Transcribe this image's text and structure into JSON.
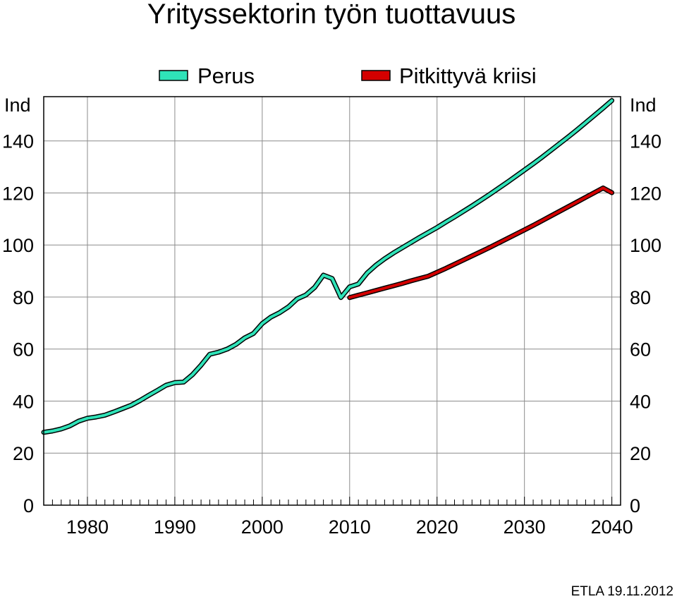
{
  "chart_data": {
    "type": "line",
    "title": "Yrityssektorin työn tuottavuus",
    "ylabel_left": "Ind",
    "ylabel_right": "Ind",
    "credit": "ETLA 19.11.2012",
    "xlim": [
      1975,
      2041
    ],
    "ylim": [
      0,
      157
    ],
    "x_ticks": [
      1980,
      1990,
      2000,
      2010,
      2020,
      2030,
      2040
    ],
    "y_ticks": [
      0,
      20,
      40,
      60,
      80,
      100,
      120,
      140
    ],
    "grid": true,
    "legend_position": "top",
    "series": [
      {
        "name": "Perus",
        "color": "#2fe3b8",
        "x": [
          1975,
          1976,
          1977,
          1978,
          1979,
          1980,
          1981,
          1982,
          1983,
          1984,
          1985,
          1986,
          1987,
          1988,
          1989,
          1990,
          1991,
          1992,
          1993,
          1994,
          1995,
          1996,
          1997,
          1998,
          1999,
          2000,
          2001,
          2002,
          2003,
          2004,
          2005,
          2006,
          2007,
          2008,
          2009,
          2010,
          2011,
          2012,
          2013,
          2014,
          2015,
          2016,
          2017,
          2018,
          2019,
          2020,
          2021,
          2022,
          2023,
          2024,
          2025,
          2026,
          2027,
          2028,
          2029,
          2030,
          2031,
          2032,
          2033,
          2034,
          2035,
          2036,
          2037,
          2038,
          2039,
          2040
        ],
        "values": [
          28,
          28.5,
          29.3,
          30.5,
          32.3,
          33.4,
          33.9,
          34.6,
          35.8,
          37.1,
          38.4,
          40.2,
          42.2,
          44.1,
          46.1,
          47.1,
          47.3,
          50.1,
          53.8,
          58,
          58.8,
          60,
          61.8,
          64.3,
          66,
          69.8,
          72.3,
          74,
          76.2,
          79.3,
          80.8,
          83.7,
          88.4,
          87.1,
          79.8,
          83.9,
          85,
          89.2,
          92.2,
          94.7,
          96.9,
          98.9,
          100.9,
          102.9,
          104.8,
          106.7,
          108.8,
          110.8,
          112.9,
          115,
          117.2,
          119.4,
          121.7,
          124,
          126.4,
          128.8,
          131.2,
          133.7,
          136.3,
          138.9,
          141.5,
          144.2,
          147,
          149.8,
          152.6,
          155.5
        ]
      },
      {
        "name": "Pitkittyvä kriisi",
        "color": "#d40000",
        "x": [
          2010,
          2011,
          2012,
          2013,
          2014,
          2015,
          2016,
          2017,
          2018,
          2019,
          2020,
          2021,
          2022,
          2023,
          2024,
          2025,
          2026,
          2027,
          2028,
          2029,
          2030,
          2031,
          2032,
          2033,
          2034,
          2035,
          2036,
          2037,
          2038,
          2039,
          2040
        ],
        "values": [
          79.8,
          80.7,
          81.6,
          82.5,
          83.4,
          84.3,
          85.2,
          86.2,
          87.1,
          88,
          89.5,
          91,
          92.6,
          94.2,
          95.8,
          97.4,
          99,
          100.7,
          102.4,
          104.1,
          105.8,
          107.5,
          109.3,
          111.1,
          112.9,
          114.7,
          116.5,
          118.3,
          120.1,
          121.9,
          120.1
        ]
      }
    ]
  }
}
